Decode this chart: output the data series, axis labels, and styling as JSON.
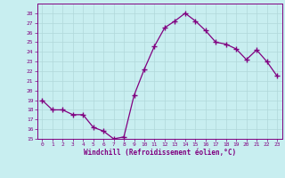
{
  "x": [
    0,
    1,
    2,
    3,
    4,
    5,
    6,
    7,
    8,
    9,
    10,
    11,
    12,
    13,
    14,
    15,
    16,
    17,
    18,
    19,
    20,
    21,
    22,
    23
  ],
  "y": [
    19,
    18,
    18,
    17.5,
    17.5,
    16.2,
    15.8,
    15.0,
    15.2,
    19.5,
    22.2,
    24.6,
    26.5,
    27.2,
    28.0,
    27.2,
    26.2,
    25.0,
    24.8,
    24.3,
    23.2,
    24.2,
    23.0,
    21.5
  ],
  "line_color": "#800080",
  "marker": "+",
  "marker_size": 4,
  "bg_color": "#c8eef0",
  "grid_color": "#b0d8da",
  "xlabel": "Windchill (Refroidissement éolien,°C)",
  "ylim": [
    15,
    29
  ],
  "xlim": [
    -0.5,
    23.5
  ],
  "yticks": [
    15,
    16,
    17,
    18,
    19,
    20,
    21,
    22,
    23,
    24,
    25,
    26,
    27,
    28
  ],
  "xticks": [
    0,
    1,
    2,
    3,
    4,
    5,
    6,
    7,
    8,
    9,
    10,
    11,
    12,
    13,
    14,
    15,
    16,
    17,
    18,
    19,
    20,
    21,
    22,
    23
  ],
  "tick_color": "#800080",
  "label_color": "#800080",
  "spine_color": "#800080",
  "figsize": [
    3.2,
    2.0
  ],
  "dpi": 100
}
